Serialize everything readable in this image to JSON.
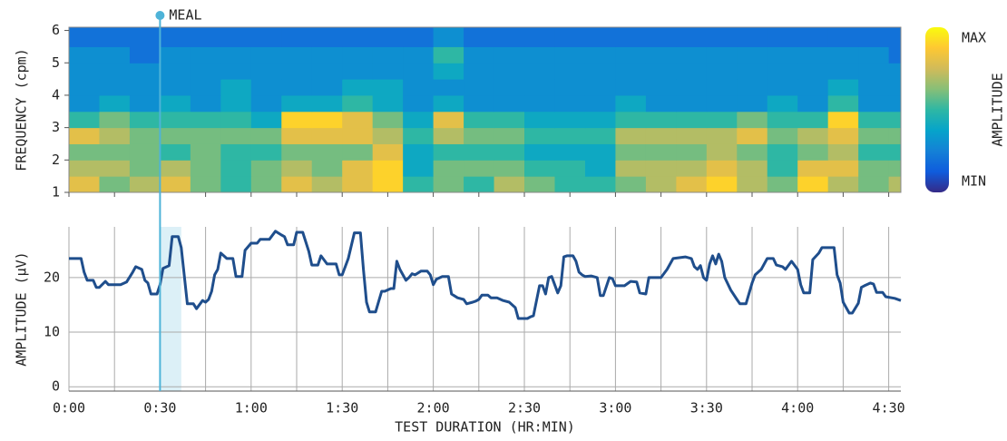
{
  "chart_data": [
    {
      "type": "heatmap",
      "ylabel": "FREQUENCY (cpm)",
      "xlim": [
        0,
        274
      ],
      "ylim": [
        1,
        6.1
      ],
      "yticks": [
        1,
        2,
        3,
        4,
        5,
        6
      ],
      "xtick_marks": [
        0,
        15,
        30,
        45,
        60,
        75,
        90,
        105,
        120,
        135,
        150,
        165,
        180,
        195,
        210,
        225,
        240,
        255,
        270
      ],
      "x_bins": [
        0,
        10,
        20,
        30,
        40,
        50,
        60,
        70,
        80,
        90,
        100,
        110,
        120,
        130,
        140,
        150,
        160,
        170,
        180,
        190,
        200,
        210,
        220,
        230,
        240,
        250,
        260,
        270,
        274
      ],
      "y_bins": [
        1,
        1.5,
        2,
        2.5,
        3,
        3.5,
        4,
        4.5,
        5,
        5.5,
        6.1
      ],
      "z": [
        [
          0.8,
          0.6,
          0.7,
          0.8,
          0.6,
          0.5,
          0.6,
          0.8,
          0.7,
          0.8,
          0.9,
          0.5,
          0.6,
          0.5,
          0.7,
          0.6,
          0.5,
          0.5,
          0.6,
          0.7,
          0.8,
          0.9,
          0.7,
          0.6,
          0.9,
          0.7,
          0.6,
          0.7
        ],
        [
          0.7,
          0.7,
          0.6,
          0.7,
          0.6,
          0.5,
          0.6,
          0.7,
          0.6,
          0.8,
          0.9,
          0.4,
          0.6,
          0.6,
          0.6,
          0.5,
          0.5,
          0.4,
          0.7,
          0.7,
          0.7,
          0.8,
          0.7,
          0.5,
          0.8,
          0.8,
          0.6,
          0.6
        ],
        [
          0.6,
          0.6,
          0.6,
          0.5,
          0.6,
          0.5,
          0.5,
          0.6,
          0.6,
          0.6,
          0.8,
          0.4,
          0.5,
          0.5,
          0.5,
          0.4,
          0.4,
          0.4,
          0.6,
          0.6,
          0.6,
          0.7,
          0.6,
          0.5,
          0.6,
          0.7,
          0.5,
          0.5
        ],
        [
          0.8,
          0.7,
          0.6,
          0.6,
          0.6,
          0.6,
          0.6,
          0.8,
          0.8,
          0.8,
          0.7,
          0.5,
          0.7,
          0.6,
          0.6,
          0.5,
          0.5,
          0.5,
          0.7,
          0.7,
          0.7,
          0.7,
          0.8,
          0.6,
          0.7,
          0.8,
          0.6,
          0.6
        ],
        [
          0.5,
          0.6,
          0.5,
          0.5,
          0.5,
          0.5,
          0.4,
          0.9,
          0.9,
          0.8,
          0.6,
          0.4,
          0.8,
          0.5,
          0.5,
          0.4,
          0.4,
          0.4,
          0.5,
          0.5,
          0.5,
          0.5,
          0.6,
          0.5,
          0.5,
          0.9,
          0.5,
          0.5
        ],
        [
          0.3,
          0.4,
          0.3,
          0.4,
          0.3,
          0.4,
          0.3,
          0.4,
          0.4,
          0.5,
          0.4,
          0.3,
          0.4,
          0.3,
          0.3,
          0.3,
          0.3,
          0.3,
          0.4,
          0.3,
          0.3,
          0.3,
          0.3,
          0.4,
          0.3,
          0.5,
          0.3,
          0.3
        ],
        [
          0.3,
          0.3,
          0.3,
          0.3,
          0.3,
          0.4,
          0.3,
          0.3,
          0.3,
          0.4,
          0.4,
          0.3,
          0.3,
          0.3,
          0.3,
          0.3,
          0.3,
          0.3,
          0.3,
          0.3,
          0.3,
          0.3,
          0.3,
          0.3,
          0.3,
          0.4,
          0.3,
          0.3
        ],
        [
          0.3,
          0.3,
          0.3,
          0.3,
          0.3,
          0.3,
          0.3,
          0.3,
          0.3,
          0.3,
          0.3,
          0.3,
          0.4,
          0.3,
          0.3,
          0.3,
          0.3,
          0.3,
          0.3,
          0.3,
          0.3,
          0.3,
          0.3,
          0.3,
          0.3,
          0.3,
          0.3,
          0.3
        ],
        [
          0.3,
          0.3,
          0.2,
          0.3,
          0.3,
          0.3,
          0.3,
          0.3,
          0.3,
          0.3,
          0.3,
          0.3,
          0.5,
          0.3,
          0.3,
          0.3,
          0.3,
          0.3,
          0.3,
          0.3,
          0.3,
          0.3,
          0.3,
          0.3,
          0.3,
          0.3,
          0.3,
          0.2
        ],
        [
          0.2,
          0.2,
          0.2,
          0.2,
          0.2,
          0.2,
          0.2,
          0.2,
          0.2,
          0.2,
          0.2,
          0.2,
          0.3,
          0.2,
          0.2,
          0.2,
          0.2,
          0.2,
          0.2,
          0.2,
          0.2,
          0.2,
          0.2,
          0.2,
          0.2,
          0.2,
          0.2,
          0.2
        ]
      ],
      "colormap": [
        "#352a87",
        "#0f5cdd",
        "#1481d6",
        "#06a4ca",
        "#2eb7a4",
        "#87bf77",
        "#d1bb59",
        "#fec832",
        "#f9fb0e"
      ],
      "colorbar": {
        "label": "AMPLITUDE",
        "range": [
          0,
          1
        ],
        "ticks": [
          {
            "value": 0,
            "label": "MIN"
          },
          {
            "value": 1,
            "label": "MAX"
          }
        ]
      }
    },
    {
      "type": "line",
      "ylabel": "AMPLITUDE (μV)",
      "xlabel": "TEST DURATION (HR:MIN)",
      "color": "#1f4e8c",
      "grid": true,
      "xlim": [
        0,
        274
      ],
      "ylim": [
        -0.8,
        29.3
      ],
      "yticks": [
        0,
        10,
        20
      ],
      "xticks": [
        {
          "value": 0,
          "label": "0:00"
        },
        {
          "value": 30,
          "label": "0:30"
        },
        {
          "value": 60,
          "label": "1:00"
        },
        {
          "value": 90,
          "label": "1:30"
        },
        {
          "value": 120,
          "label": "2:00"
        },
        {
          "value": 150,
          "label": "2:30"
        },
        {
          "value": 180,
          "label": "3:00"
        },
        {
          "value": 210,
          "label": "3:30"
        },
        {
          "value": 240,
          "label": "4:00"
        },
        {
          "value": 270,
          "label": "4:30"
        }
      ],
      "xminor_ticks": [
        15,
        45,
        75,
        105,
        135,
        165,
        195,
        225,
        255
      ],
      "annotation": {
        "text": "MEAL",
        "x": 30,
        "shade": [
          30,
          37
        ],
        "color": "#4eb3d8"
      },
      "x": [
        0,
        4,
        5,
        6,
        8,
        9,
        10,
        12,
        13,
        17,
        19,
        21,
        22,
        24,
        25,
        26,
        27,
        29,
        30,
        31,
        33,
        34,
        36,
        37,
        39,
        41,
        42,
        44,
        45,
        46,
        47,
        48,
        49,
        50,
        51,
        52,
        54,
        55,
        57,
        58,
        60,
        62,
        63,
        66,
        68,
        70,
        71,
        72,
        74,
        75,
        77,
        79,
        80,
        82,
        83,
        85,
        88,
        89,
        90,
        92,
        94,
        96,
        97,
        98,
        99,
        101,
        103,
        104,
        106,
        107,
        108,
        109,
        111,
        112,
        113,
        114,
        116,
        118,
        119,
        120,
        121,
        123,
        125,
        126,
        128,
        130,
        131,
        133,
        134,
        135,
        136,
        138,
        139,
        141,
        143,
        145,
        147,
        148,
        151,
        152,
        153,
        155,
        156,
        157,
        158,
        159,
        161,
        162,
        163,
        164,
        166,
        167,
        168,
        169,
        170,
        172,
        174,
        175,
        176,
        178,
        179,
        180,
        182,
        183,
        185,
        187,
        188,
        190,
        191,
        195,
        197,
        199,
        203,
        205,
        206,
        207,
        208,
        209,
        210,
        211,
        212,
        213,
        214,
        215,
        216,
        218,
        220,
        221,
        223,
        225,
        226,
        228,
        230,
        232,
        233,
        235,
        236,
        238,
        240,
        241,
        242,
        244,
        245,
        247,
        248,
        252,
        253,
        254,
        255,
        257,
        258,
        260,
        261,
        262,
        264,
        265,
        266,
        268,
        269,
        272,
        274
      ],
      "values": [
        23.5,
        23.5,
        21,
        19.5,
        19.5,
        18.2,
        18.2,
        19.3,
        18.7,
        18.7,
        19.2,
        21,
        22,
        21.5,
        19.5,
        19,
        17,
        17,
        18.7,
        21.7,
        22.2,
        27.5,
        27.5,
        25.5,
        15.2,
        15.2,
        14.3,
        15.8,
        15.5,
        16,
        17.5,
        20.5,
        21.5,
        24.5,
        24,
        23.5,
        23.5,
        20.2,
        20.2,
        25,
        26.3,
        26.3,
        27,
        27,
        28.5,
        27.8,
        27.5,
        26,
        26,
        28.3,
        28.3,
        24.8,
        22.3,
        22.3,
        24,
        22.5,
        22.5,
        20.5,
        20.5,
        23.5,
        28.2,
        28.2,
        21.5,
        15.5,
        13.7,
        13.7,
        17.5,
        17.5,
        18,
        18,
        23,
        21.5,
        19.5,
        20,
        20.7,
        20.5,
        21.2,
        21.2,
        20.5,
        18.7,
        19.7,
        20.2,
        20.2,
        17,
        16.3,
        16,
        15.2,
        15.5,
        15.7,
        16,
        16.8,
        16.8,
        16.3,
        16.3,
        15.8,
        15.5,
        14.5,
        12.5,
        12.5,
        12.8,
        13,
        18.5,
        18.5,
        17,
        20,
        20.2,
        17.2,
        18.5,
        23.8,
        24,
        24,
        23,
        21,
        20.5,
        20.2,
        20.3,
        20,
        16.7,
        16.7,
        20,
        19.8,
        18.5,
        18.5,
        18.5,
        19.3,
        19.2,
        17.2,
        17,
        20,
        20,
        21.5,
        23.5,
        23.8,
        23.5,
        22,
        21.5,
        22.2,
        20,
        19.5,
        22.5,
        24,
        22.5,
        24.3,
        23,
        20,
        17.7,
        16,
        15.2,
        15.2,
        19,
        20.5,
        21.5,
        23.5,
        23.5,
        22.3,
        22,
        21.5,
        23,
        21.5,
        18.7,
        17.2,
        17.2,
        23.3,
        24.5,
        25.5,
        25.5,
        20.5,
        19,
        15.5,
        13.5,
        13.5,
        15.3,
        18.2,
        18.5,
        19,
        18.8,
        17.3,
        17.3,
        16.5,
        16.2,
        15.8
      ]
    }
  ]
}
